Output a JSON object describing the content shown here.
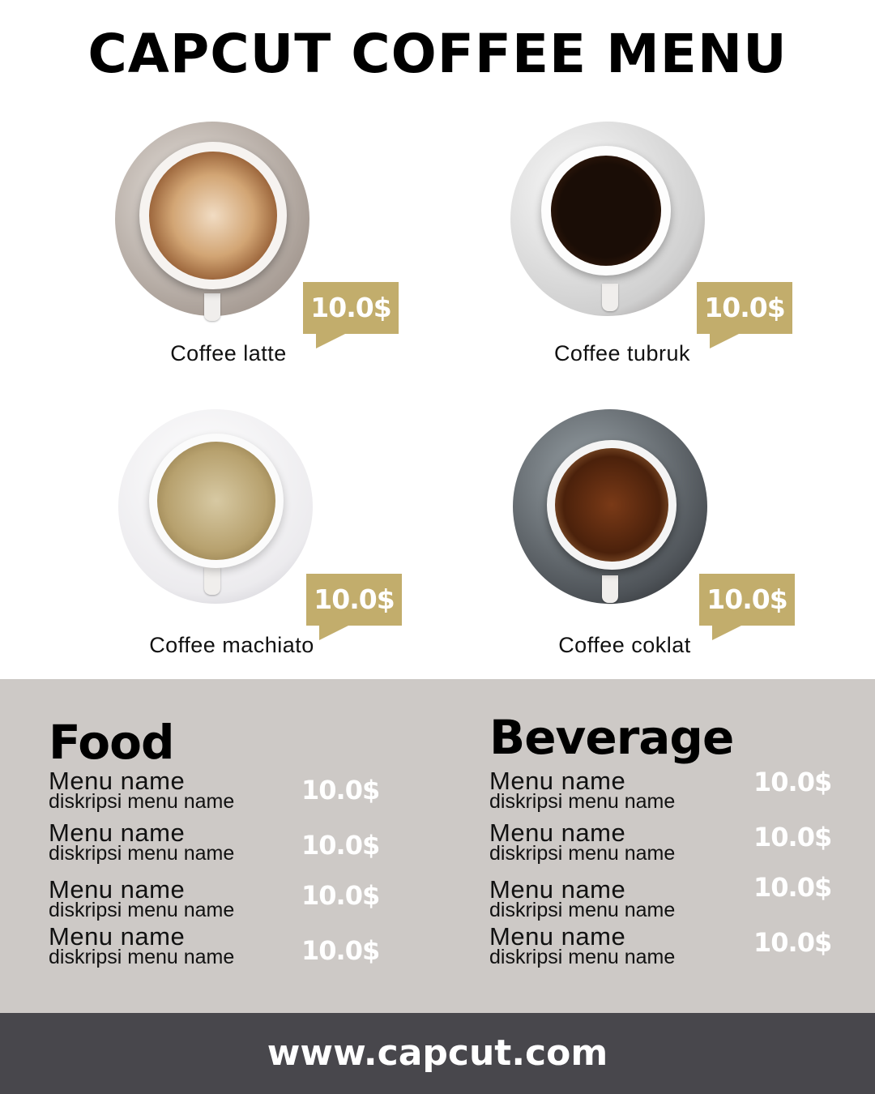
{
  "title": "CAPCUT COFFEE MENU",
  "colors": {
    "accent": "#c2ad6c",
    "menu_bg": "#cdc9c6",
    "footer_bg": "#48474c"
  },
  "featured": [
    {
      "name": "Coffee latte",
      "price": "10.0$"
    },
    {
      "name": "Coffee tubruk",
      "price": "10.0$"
    },
    {
      "name": "Coffee machiato",
      "price": "10.0$"
    },
    {
      "name": "Coffee coklat",
      "price": "10.0$"
    }
  ],
  "food": {
    "title": "Food",
    "items": [
      {
        "name": "Menu name",
        "desc": "diskripsi menu name",
        "price": "10.0$"
      },
      {
        "name": "Menu name",
        "desc": "diskripsi menu name",
        "price": "10.0$"
      },
      {
        "name": "Menu name",
        "desc": "diskripsi menu name",
        "price": "10.0$"
      },
      {
        "name": "Menu name",
        "desc": "diskripsi menu name",
        "price": "10.0$"
      }
    ]
  },
  "beverage": {
    "title": "Beverage",
    "items": [
      {
        "name": "Menu name",
        "desc": "diskripsi menu name",
        "price": "10.0$"
      },
      {
        "name": "Menu name",
        "desc": "diskripsi menu name",
        "price": "10.0$"
      },
      {
        "name": "Menu name",
        "desc": "diskripsi menu name",
        "price": "10.0$"
      },
      {
        "name": "Menu name",
        "desc": "diskripsi menu name",
        "price": "10.0$"
      }
    ]
  },
  "footer": "www.capcut.com"
}
